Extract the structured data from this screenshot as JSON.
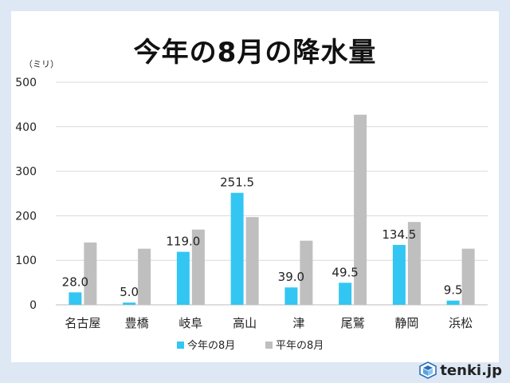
{
  "chart_data": {
    "type": "bar",
    "title": "今年の8月の降水量",
    "ylabel": "（ミリ）",
    "ylim": [
      0,
      500
    ],
    "yticks": [
      "0",
      "100",
      "200",
      "300",
      "400",
      "500"
    ],
    "grid": true,
    "legend_position": "bottom",
    "categories": [
      "名古屋",
      "豊橋",
      "岐阜",
      "高山",
      "津",
      "尾鷲",
      "静岡",
      "浜松"
    ],
    "series": [
      {
        "name": "今年の8月",
        "color": "#33c6f2",
        "values": [
          28.0,
          5.0,
          119.0,
          251.5,
          39.0,
          49.5,
          134.5,
          9.5
        ],
        "labels": [
          "28.0",
          "5.0",
          "119.0",
          "251.5",
          "39.0",
          "49.5",
          "134.5",
          "9.5"
        ]
      },
      {
        "name": "平年の8月",
        "color": "#bfbfbf",
        "values": [
          140,
          126,
          169,
          197,
          144,
          427,
          186,
          126
        ]
      }
    ]
  },
  "brand": {
    "name": "tenki.jp"
  }
}
